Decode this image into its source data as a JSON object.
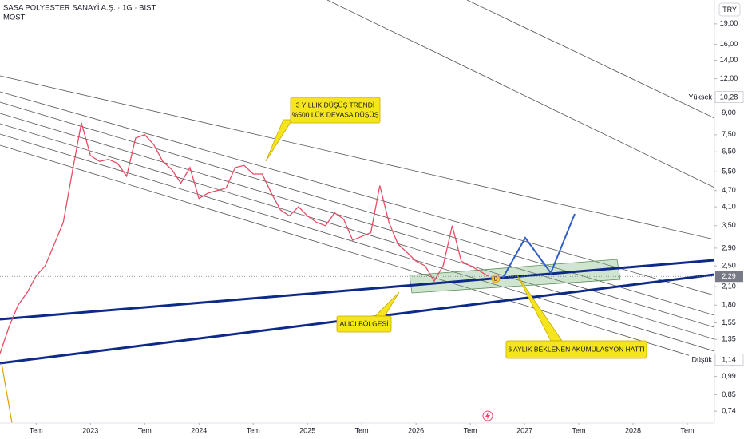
{
  "chart_data": {
    "type": "line",
    "title": "SASA POLYESTER SANAYİ A.Ş. · 1G · BIST",
    "subtitle": "MOST",
    "currency": "TRY",
    "log_scale": true,
    "grid": false,
    "color": "#e84c64",
    "x": [
      "2022-03",
      "2022-04",
      "2022-05",
      "2022-06",
      "2022-07",
      "2022-08",
      "2022-09",
      "2022-10",
      "2022-11",
      "2022-12",
      "2023-01",
      "2023-02",
      "2023-03",
      "2023-04",
      "2023-05",
      "2023-06",
      "2023-07",
      "2023-08",
      "2023-09",
      "2023-10",
      "2023-11",
      "2023-12",
      "2024-01",
      "2024-02",
      "2024-03",
      "2024-04",
      "2024-05",
      "2024-06",
      "2024-07",
      "2024-08",
      "2024-09",
      "2024-10",
      "2024-11",
      "2024-12",
      "2025-01",
      "2025-02",
      "2025-03",
      "2025-04",
      "2025-05",
      "2025-06",
      "2025-07",
      "2025-08",
      "2025-09",
      "2025-10",
      "2025-11",
      "2025-12",
      "2026-01",
      "2026-02",
      "2026-03",
      "2026-04",
      "2026-05",
      "2026-06",
      "2026-07",
      "2026-08",
      "2026-09"
    ],
    "values": [
      1.2,
      1.5,
      1.8,
      2.0,
      2.3,
      2.5,
      3.0,
      3.6,
      5.5,
      8.3,
      6.3,
      6.0,
      6.1,
      5.9,
      5.3,
      7.3,
      7.5,
      6.9,
      6.0,
      5.6,
      5.0,
      5.7,
      4.4,
      4.6,
      4.7,
      4.8,
      5.7,
      5.8,
      5.4,
      5.4,
      4.6,
      4.0,
      3.8,
      4.1,
      3.8,
      3.6,
      3.5,
      3.9,
      3.7,
      3.1,
      3.2,
      3.3,
      4.9,
      3.6,
      3.0,
      2.8,
      2.6,
      2.5,
      2.2,
      2.5,
      3.5,
      2.6,
      2.5,
      2.4,
      2.29
    ],
    "xlim": [
      "2022-03",
      "2028-10"
    ],
    "xticks": [
      {
        "value": "2022-07",
        "label": "Tem"
      },
      {
        "value": "2023-01",
        "label": "2023"
      },
      {
        "value": "2023-07",
        "label": "Tem"
      },
      {
        "value": "2024-01",
        "label": "2024"
      },
      {
        "value": "2024-07",
        "label": "Tem"
      },
      {
        "value": "2025-01",
        "label": "2025"
      },
      {
        "value": "2025-07",
        "label": "Tem"
      },
      {
        "value": "2026-01",
        "label": "2026"
      },
      {
        "value": "2026-07",
        "label": "Tem"
      },
      {
        "value": "2027-01",
        "label": "2027"
      },
      {
        "value": "2027-07",
        "label": "Tem"
      },
      {
        "value": "2028-01",
        "label": "2028"
      },
      {
        "value": "2028-07",
        "label": "Tem"
      }
    ],
    "ylim": [
      0.67,
      23.2
    ],
    "yticks": [
      {
        "value": 19,
        "label": "19,00"
      },
      {
        "value": 16,
        "label": "16,00"
      },
      {
        "value": 14,
        "label": "14,00"
      },
      {
        "value": 12,
        "label": "12,00"
      },
      {
        "value": 9,
        "label": "9,00"
      },
      {
        "value": 7.5,
        "label": "7,50"
      },
      {
        "value": 6.5,
        "label": "6,50"
      },
      {
        "value": 5.5,
        "label": "5,50"
      },
      {
        "value": 4.7,
        "label": "4,70"
      },
      {
        "value": 4.1,
        "label": "4,10"
      },
      {
        "value": 3.5,
        "label": "3,50"
      },
      {
        "value": 2.9,
        "label": "2,90"
      },
      {
        "value": 2.5,
        "label": "2,50"
      },
      {
        "value": 2.1,
        "label": "2,10"
      },
      {
        "value": 1.8,
        "label": "1,80"
      },
      {
        "value": 1.55,
        "label": "1,55"
      },
      {
        "value": 1.35,
        "label": "1,35"
      },
      {
        "value": 0.99,
        "label": "0,99"
      },
      {
        "value": 0.85,
        "label": "0,85"
      },
      {
        "value": 0.74,
        "label": "0,74"
      }
    ],
    "high": {
      "name": "Yüksek",
      "value": 10.28,
      "label": "10,28"
    },
    "low": {
      "name": "Düşük",
      "value": 1.14,
      "label": "1,14"
    },
    "last": {
      "value": 2.29,
      "label": "2,29"
    },
    "annotations": {
      "trend_callout": [
        "3 YILLIK DÜŞÜŞ TRENDİ",
        "%500 LÜK DEVASA DÜŞÜŞ"
      ],
      "buyer_zone": "ALICI BÖLGESİ",
      "accumulation": "6 AYLIK BEKLENEN AKÜMÜLASYON HATTI"
    },
    "dividend_marker": "D"
  }
}
